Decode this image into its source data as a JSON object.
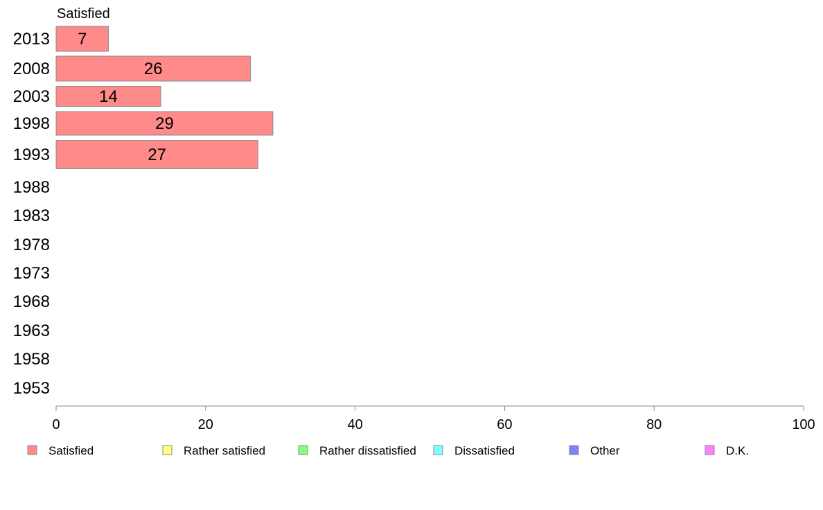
{
  "chart_data": {
    "type": "bar",
    "orientation": "horizontal",
    "stacked": true,
    "categories": [
      "2013",
      "2008",
      "2003",
      "1998",
      "1993",
      "1988",
      "1983",
      "1978",
      "1973",
      "1968",
      "1963",
      "1958",
      "1953"
    ],
    "series": [
      {
        "name": "Satisfied",
        "color": "#ff8a8a",
        "values": [
          7,
          26,
          14,
          29,
          27,
          null,
          null,
          null,
          null,
          null,
          null,
          null,
          null
        ]
      }
    ],
    "legend": [
      {
        "label": "Satisfied",
        "color": "#ff8a8a"
      },
      {
        "label": "Rather satisfied",
        "color": "#ffff80"
      },
      {
        "label": "Rather dissatisfied",
        "color": "#80ff80"
      },
      {
        "label": "Dissatisfied",
        "color": "#80ffff"
      },
      {
        "label": "Other",
        "color": "#8080ff"
      },
      {
        "label": "D.K.",
        "color": "#ff80ff"
      }
    ],
    "series_title": "Satisfied",
    "xticks": [
      0,
      20,
      40,
      60,
      80,
      100
    ],
    "xlim": [
      0,
      100
    ],
    "grid": false,
    "legend_position": "bottom"
  }
}
